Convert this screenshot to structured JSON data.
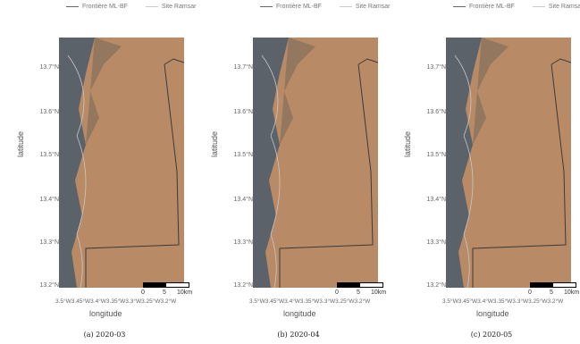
{
  "legend": {
    "frontier_label": "Frontière ML-BF",
    "ramsar_label": "Site Ramsar"
  },
  "axes": {
    "ylabel": "latitude",
    "xlabel": "longitude",
    "yticks": [
      "13.7°N",
      "13.6°N",
      "13.5°N",
      "13.4°N",
      "13.3°N",
      "13.2°N"
    ],
    "xticks": "3.5°W3.45°W3.4°W3.35°W3.3°W3.25°W3.2°W"
  },
  "scalebar": {
    "l0": "0",
    "l5": "5",
    "l10": "10km"
  },
  "panels": [
    {
      "caption": "(a) 2020-03"
    },
    {
      "caption": "(b) 2020-04"
    },
    {
      "caption": "(c) 2020-05"
    }
  ],
  "colors": {
    "land": "#b98a66",
    "river": "#4a5a6a",
    "border": "#3a3a3a"
  }
}
